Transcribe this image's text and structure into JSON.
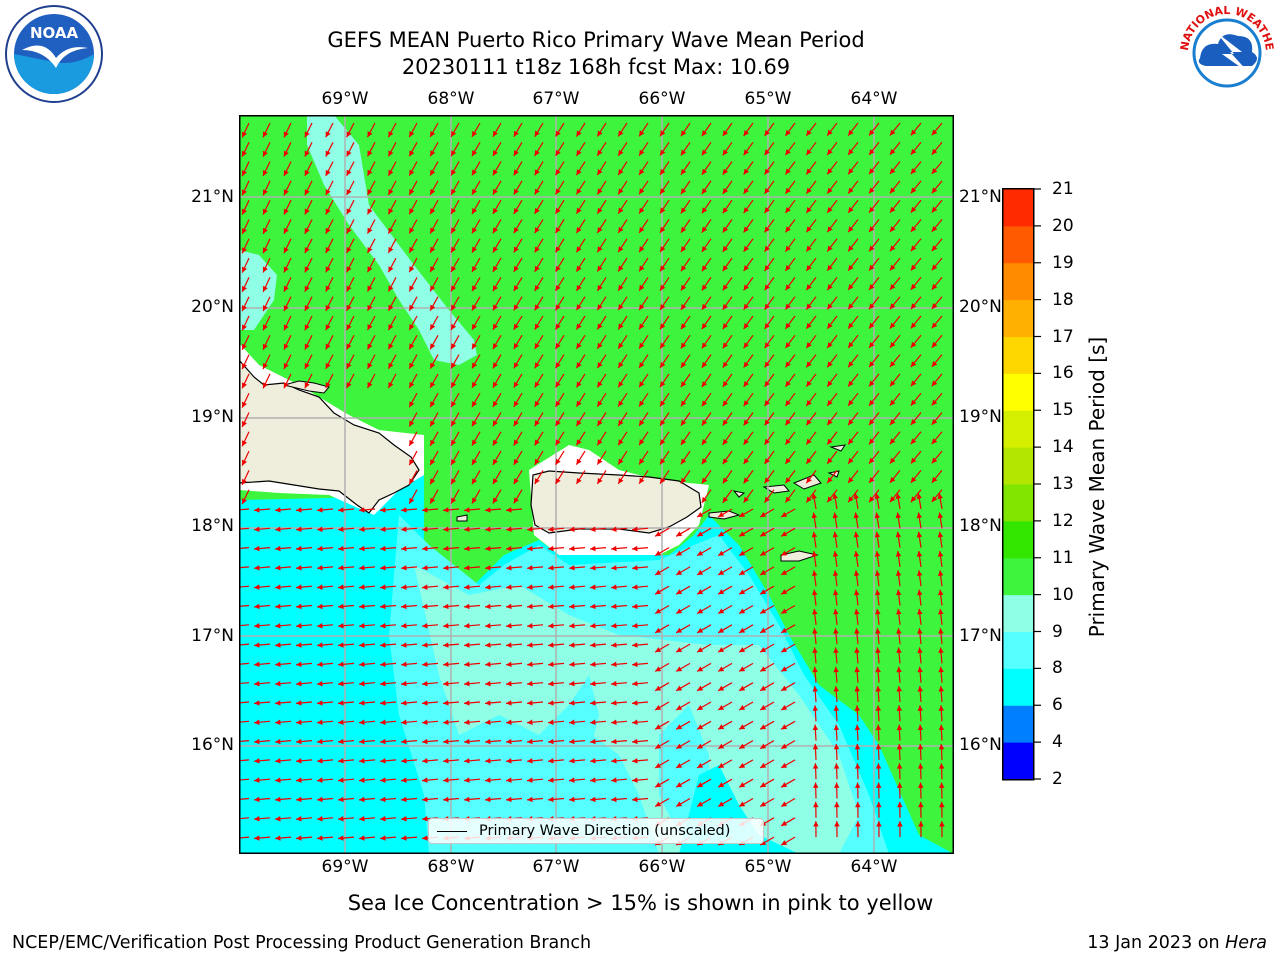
{
  "title_line1": "GEFS MEAN Puerto Rico Primary Wave Mean Period",
  "title_line2": "20230111 t18z 168h fcst   Max: 10.69",
  "lon_ticks": [
    "69°W",
    "68°W",
    "67°W",
    "66°W",
    "65°W",
    "64°W"
  ],
  "lat_ticks": [
    "21°N",
    "20°N",
    "19°N",
    "18°N",
    "17°N",
    "16°N"
  ],
  "colorbar": {
    "label": "Primary Wave Mean Period [s]",
    "ticks": [
      "2",
      "4",
      "6",
      "8",
      "9",
      "10",
      "11",
      "12",
      "13",
      "14",
      "15",
      "16",
      "17",
      "18",
      "19",
      "20",
      "21"
    ],
    "colors": [
      "#0000ff",
      "#0080ff",
      "#00ffff",
      "#55ffff",
      "#8fffe6",
      "#3cf53c",
      "#33e600",
      "#80e600",
      "#b3e600",
      "#d4f000",
      "#ffff00",
      "#ffd700",
      "#ffb000",
      "#ff8c00",
      "#ff5a00",
      "#ff2a00"
    ]
  },
  "legend_label": "Primary Wave Direction (unscaled)",
  "sea_ice_note": "Sea Ice Concentration > 15% is shown in pink to yellow",
  "footer_left": "NCEP/EMC/Verification Post Processing Product Generation Branch",
  "footer_date": "13 Jan 2023 on ",
  "footer_machine": "Hera",
  "logos": {
    "left": "NOAA",
    "right": "NATIONAL WEATHER SERVICE"
  },
  "map_colors": {
    "green": "#3cf53c",
    "aqua": "#8fffe6",
    "cyan": "#00ffff",
    "lightcyan": "#55ffff",
    "land": "#efeddc",
    "arrow": "#ee0000"
  }
}
